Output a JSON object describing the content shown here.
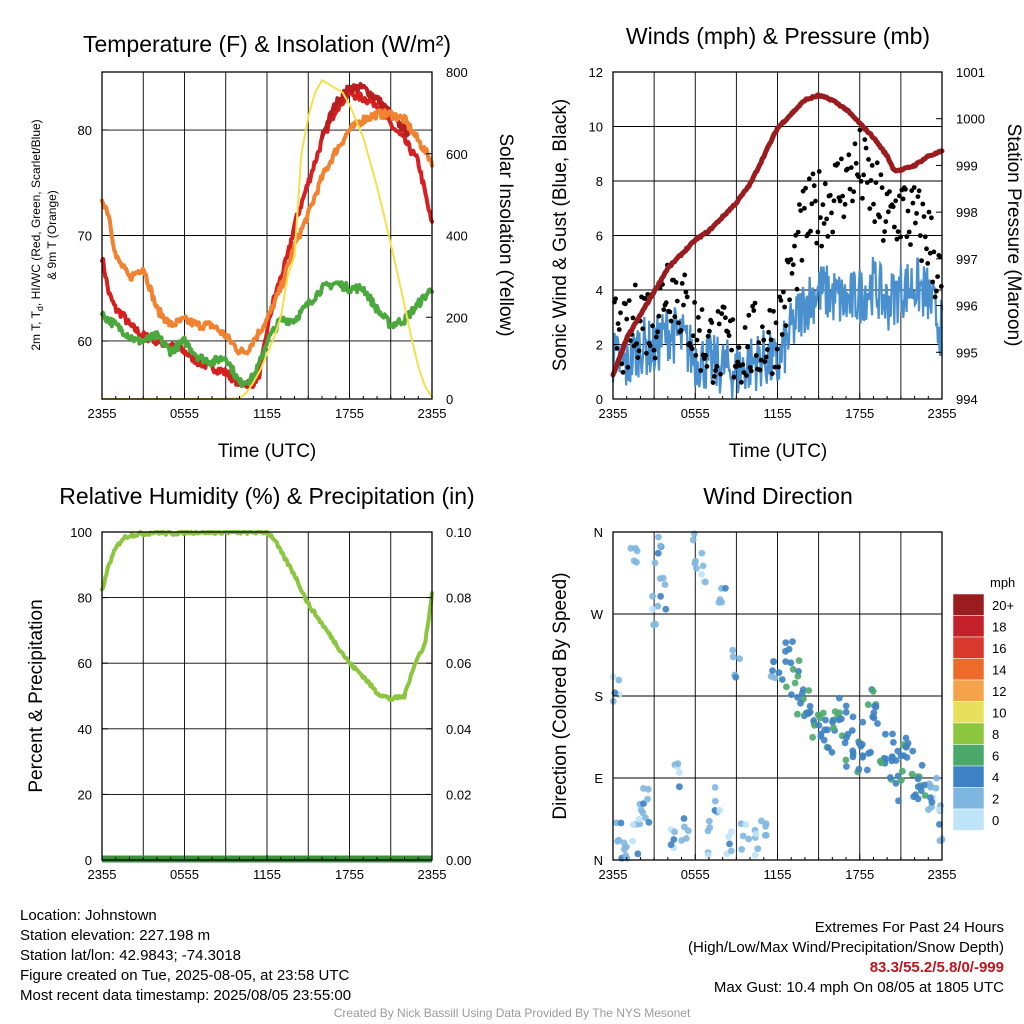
{
  "panels": {
    "temp": {
      "title": "Temperature (F) & Insolation (W/m²)",
      "ylabel_left_1": "2m T, T",
      "ylabel_left_1_sub": "d",
      "ylabel_left_1_rest": ", HI/WC (Red, Green, Scarlet/Blue)",
      "ylabel_left_2": "& 9m T (Orange)",
      "ylabel_right": "Solar Insolation (Yellow)",
      "xlabel": "Time (UTC)"
    },
    "wind": {
      "title": "Winds (mph) & Pressure (mb)",
      "ylabel_left": "Sonic Wind & Gust (Blue, Black)",
      "ylabel_right": "Station Pressure (Maroon)",
      "xlabel": "Time (UTC)"
    },
    "rh": {
      "title": "Relative Humidity (%) & Precipitation (in)",
      "ylabel_left": "Percent & Precipitation"
    },
    "dir": {
      "title": "Wind Direction",
      "ylabel_left": "Direction (Colored By Speed)",
      "colorbar_unit": "mph",
      "colorbar_labels": [
        "20+",
        "18",
        "16",
        "14",
        "12",
        "10",
        "8",
        "6",
        "4",
        "2",
        "0"
      ],
      "colorbar_colors": [
        "#9b1c1f",
        "#c4202a",
        "#d9382c",
        "#ee6a2b",
        "#f5a34a",
        "#e8df5d",
        "#8cc63f",
        "#4aa86a",
        "#3d82c4",
        "#7fb6e0",
        "#bfe3f7"
      ]
    }
  },
  "footer": {
    "location": "Location: Johnstown",
    "elevation": "Station elevation: 227.198 m",
    "latlon": "Station lat/lon: 42.9843; -74.3018",
    "created": "Figure created on Tue, 2025-08-05, at 23:58 UTC",
    "recent": "Most recent data timestamp: 2025/08/05 23:55:00",
    "extremes_title": "Extremes For Past 24 Hours",
    "extremes_fields": "(High/Low/Max Wind/Precipitation/Snow Depth)",
    "extremes_values": "83.3/55.2/5.8/0/-999",
    "max_gust": "Max Gust: 10.4 mph On 08/05 at 1805 UTC",
    "credit": "Created By Nick Bassill Using Data Provided By The NYS Mesonet"
  },
  "chart_data": [
    {
      "type": "line",
      "id": "temp",
      "title": "Temperature (F) & Insolation (W/m²)",
      "xlabel": "Time (UTC)",
      "x_ticks": [
        "2355",
        "0555",
        "1155",
        "1755",
        "2355"
      ],
      "x_hours": [
        0,
        6,
        12,
        18,
        24
      ],
      "ylim": [
        54.5,
        85.5
      ],
      "y_ticks": [
        60,
        70,
        80
      ],
      "y2lim": [
        0,
        800
      ],
      "y2_ticks": [
        0,
        200,
        400,
        600,
        800
      ],
      "series": [
        {
          "name": "2m T",
          "color": "#d42020",
          "axis": "left",
          "x": [
            0,
            0.5,
            1,
            1.5,
            2,
            2.5,
            3,
            4,
            5,
            6,
            7,
            8,
            9,
            10,
            11,
            11.5,
            12,
            12.5,
            13,
            13.5,
            14,
            15,
            16,
            17,
            18,
            19,
            20,
            21,
            22,
            23,
            23.5,
            24
          ],
          "y": [
            68,
            64.5,
            63,
            62.5,
            61.5,
            61,
            60.5,
            60,
            59.5,
            59,
            58,
            57.5,
            57,
            56,
            56,
            57,
            61,
            64,
            66,
            68,
            71,
            75,
            79,
            82,
            83.5,
            83,
            82.5,
            80.5,
            79,
            77,
            74,
            71
          ]
        },
        {
          "name": "HI/WC",
          "color": "#b81e1e",
          "axis": "left",
          "x": [
            16,
            17,
            18,
            19,
            20,
            21,
            22,
            22.5
          ],
          "y": [
            79.5,
            82.5,
            84,
            84,
            83,
            81.5,
            80,
            79.5
          ]
        },
        {
          "name": "9m T",
          "color": "#f08230",
          "axis": "left",
          "x": [
            0,
            0.5,
            1,
            2,
            3,
            4,
            5,
            6,
            7,
            8,
            9,
            10,
            10.5,
            11,
            12,
            13,
            14,
            15,
            16,
            17,
            18,
            19,
            20,
            21,
            22,
            23,
            23.5,
            24
          ],
          "y": [
            73.5,
            72,
            68,
            66,
            67,
            63,
            61.5,
            62,
            61.5,
            61.5,
            60.5,
            59,
            59,
            60,
            62,
            65,
            69,
            72,
            75.5,
            78,
            80,
            81,
            81.5,
            81.5,
            81,
            79,
            78,
            77
          ]
        },
        {
          "name": "2m Td",
          "color": "#4aa83c",
          "axis": "left",
          "x": [
            0,
            0.5,
            1,
            1.5,
            2,
            2.5,
            3,
            4,
            5,
            6,
            7,
            8,
            9,
            10,
            11,
            11.5,
            12,
            13,
            14,
            15,
            16,
            17,
            18,
            19,
            20,
            21,
            22,
            23,
            24
          ],
          "y": [
            62.5,
            62,
            61.5,
            61,
            60.5,
            60,
            60,
            60.5,
            59,
            60,
            58.5,
            58,
            58.5,
            56,
            56.5,
            58,
            60,
            62,
            62,
            63.5,
            65,
            65.5,
            65,
            65,
            63,
            61.5,
            62,
            63.5,
            65
          ]
        },
        {
          "name": "Solar Insolation",
          "color": "#f5e04a",
          "axis": "right",
          "x": [
            0,
            3,
            6,
            9,
            10,
            10.5,
            11,
            11.5,
            12,
            12.5,
            13,
            13.5,
            14,
            14.5,
            15,
            15.5,
            16,
            16.5,
            17,
            17.5,
            18,
            18.5,
            19,
            20,
            21,
            22,
            22.5,
            23,
            23.5,
            24
          ],
          "y": [
            0,
            0,
            0,
            0,
            2,
            15,
            40,
            70,
            110,
            150,
            200,
            300,
            350,
            600,
            690,
            750,
            780,
            770,
            760,
            750,
            720,
            680,
            640,
            520,
            380,
            230,
            150,
            80,
            30,
            5
          ]
        }
      ]
    },
    {
      "type": "line",
      "id": "wind",
      "title": "Winds (mph) & Pressure (mb)",
      "xlabel": "Time (UTC)",
      "x_ticks": [
        "2355",
        "0555",
        "1155",
        "1755",
        "2355"
      ],
      "x_hours": [
        0,
        6,
        12,
        18,
        24
      ],
      "ylim": [
        0,
        12
      ],
      "y_ticks": [
        0,
        2,
        4,
        6,
        8,
        10,
        12
      ],
      "y2lim": [
        994,
        1001
      ],
      "y2_ticks": [
        994,
        995,
        996,
        997,
        998,
        999,
        1000,
        1001
      ],
      "series": [
        {
          "name": "Sonic Wind",
          "color": "#4a90cf",
          "axis": "left",
          "x": [
            0,
            1,
            2,
            3,
            4,
            5,
            6,
            7,
            8,
            9,
            10,
            11,
            12,
            13,
            14,
            15,
            16,
            17,
            18,
            19,
            20,
            21,
            22,
            23,
            24
          ],
          "y": [
            1.5,
            1.2,
            2,
            1.8,
            2.5,
            2.2,
            1.5,
            1.3,
            1.2,
            1.0,
            1.3,
            1.5,
            1.2,
            2.5,
            3.5,
            4.0,
            3.8,
            3.5,
            3.8,
            4.2,
            3.5,
            4.0,
            4.2,
            3.8,
            2.5
          ]
        },
        {
          "name": "Gust",
          "color": "#000000",
          "axis": "left",
          "x": [
            0,
            1,
            2,
            3,
            4,
            5,
            6,
            7,
            8,
            9,
            10,
            11,
            12,
            13,
            14,
            15,
            16,
            17,
            18,
            19,
            20,
            21,
            22,
            23,
            24
          ],
          "y": [
            2.5,
            2.0,
            3.2,
            2.8,
            4.5,
            3.5,
            2.5,
            2.0,
            2.0,
            1.8,
            2.0,
            2.2,
            2.5,
            4.5,
            6.5,
            7.0,
            7.5,
            8.0,
            8.5,
            7.5,
            6.5,
            7.0,
            6.5,
            6.0,
            4.0
          ]
        },
        {
          "name": "Station Pressure",
          "color": "#9b1c1f",
          "axis": "right",
          "x": [
            0,
            1,
            2,
            3,
            4,
            5,
            6,
            7,
            8,
            9,
            10,
            11,
            12,
            13,
            14,
            15,
            16,
            17,
            18,
            19,
            20,
            20.5,
            21,
            22,
            23,
            24
          ],
          "y": [
            994.5,
            995.3,
            995.8,
            996.3,
            996.8,
            997.1,
            997.4,
            997.6,
            997.9,
            998.2,
            998.6,
            999.2,
            999.8,
            1000.1,
            1000.4,
            1000.5,
            1000.4,
            1000.2,
            999.9,
            999.6,
            999.2,
            998.9,
            998.9,
            999.0,
            999.2,
            999.3
          ]
        }
      ]
    },
    {
      "type": "line",
      "id": "rh",
      "title": "Relative Humidity (%) & Precipitation (in)",
      "x_ticks": [
        "2355",
        "0555",
        "1155",
        "1755",
        "2355"
      ],
      "x_hours": [
        0,
        6,
        12,
        18,
        24
      ],
      "ylim": [
        0,
        100
      ],
      "y_ticks": [
        0,
        20,
        40,
        60,
        80,
        100
      ],
      "y2lim": [
        0,
        0.1
      ],
      "y2_ticks": [
        "0.00",
        "0.02",
        "0.04",
        "0.06",
        "0.08",
        "0.10"
      ],
      "series": [
        {
          "name": "Relative Humidity",
          "color": "#8cc63f",
          "axis": "left",
          "x": [
            0,
            0.5,
            1,
            1.5,
            2,
            3,
            4,
            5,
            6,
            7,
            8,
            9,
            10,
            11,
            12,
            12.5,
            13,
            14,
            15,
            16,
            17,
            18,
            19,
            20,
            21,
            22,
            22.5,
            23,
            23.5,
            24
          ],
          "y": [
            82,
            90,
            95,
            98,
            99,
            99.5,
            100,
            99.5,
            100,
            100,
            100,
            100,
            100,
            100,
            100,
            98,
            94,
            87,
            78,
            72,
            66,
            60,
            56,
            51,
            49,
            50,
            57,
            62,
            66,
            81
          ]
        },
        {
          "name": "Precipitation",
          "color": "#2e7d32",
          "axis": "right",
          "x": [
            0,
            24
          ],
          "y": [
            0,
            0
          ]
        }
      ]
    },
    {
      "type": "scatter",
      "id": "dir",
      "title": "Wind Direction",
      "x_ticks": [
        "2355",
        "0555",
        "1155",
        "1755",
        "2355"
      ],
      "x_hours": [
        0,
        6,
        12,
        18,
        24
      ],
      "y_ticks": [
        "N",
        "E",
        "S",
        "W",
        "N"
      ],
      "ylim": [
        0,
        360
      ],
      "points_x": [
        0.2,
        0.5,
        0.8,
        1.5,
        1.7,
        2.0,
        2.4,
        3.0,
        3.3,
        3.6,
        4.2,
        4.8,
        5.3,
        6.0,
        6.5,
        7.0,
        7.5,
        8.0,
        8.5,
        9.0,
        9.6,
        10.3,
        11.0,
        11.8,
        12.4,
        12.9,
        13.3,
        13.7,
        14.1,
        14.5,
        14.9,
        15.3,
        15.7,
        16.1,
        16.5,
        16.9,
        17.3,
        17.7,
        18.1,
        18.5,
        18.9,
        19.3,
        19.7,
        20.1,
        20.5,
        20.9,
        21.3,
        21.7,
        22.1,
        22.5,
        22.9,
        23.3,
        23.7,
        24.0
      ],
      "points_y": [
        190,
        30,
        10,
        330,
        20,
        45,
        60,
        270,
        340,
        295,
        20,
        90,
        40,
        340,
        320,
        25,
        60,
        300,
        15,
        220,
        30,
        20,
        40,
        200,
        210,
        225,
        200,
        165,
        180,
        150,
        140,
        160,
        130,
        145,
        170,
        120,
        150,
        100,
        140,
        110,
        175,
        150,
        125,
        95,
        120,
        80,
        130,
        110,
        75,
        90,
        70,
        65,
        70,
        40
      ]
    }
  ]
}
